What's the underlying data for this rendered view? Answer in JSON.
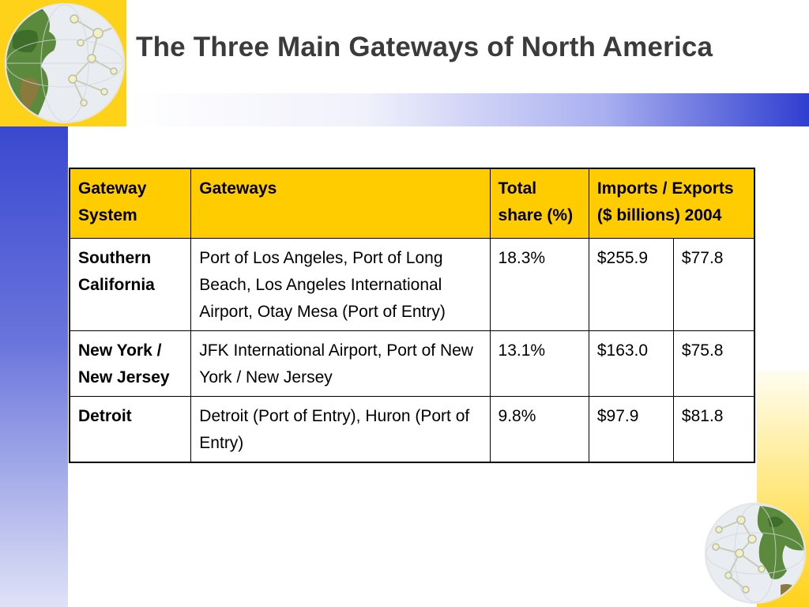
{
  "slide": {
    "title": "The Three Main Gateways of North America"
  },
  "table": {
    "headers": {
      "gateway_system": "Gateway System",
      "gateways": "Gateways",
      "total_share": "Total share (%)",
      "imports_exports": "Imports / Exports ($ billions) 2004"
    },
    "rows": [
      {
        "system": "Southern California",
        "gateways": "Port of Los Angeles, Port of Long Beach, Los Angeles International Airport, Otay Mesa (Port of Entry)",
        "share": "18.3%",
        "imports": "$255.9",
        "exports": "$77.8"
      },
      {
        "system": "New York / New Jersey",
        "gateways": "JFK International Airport, Port of New York / New Jersey",
        "share": "13.1%",
        "imports": "$163.0",
        "exports": "$75.8"
      },
      {
        "system": "Detroit",
        "gateways": "Detroit (Port of Entry), Huron (Port of Entry)",
        "share": "9.8%",
        "imports": "$97.9",
        "exports": "$81.8"
      }
    ]
  },
  "colors": {
    "header_fill": "#ffcc00",
    "accent_blue": "#2f3ed0",
    "accent_yellow": "#ffd21a",
    "title_text": "#3b3b3b"
  },
  "icons": {
    "top_left": "globe-network-icon",
    "bottom_right": "globe-network-icon"
  }
}
